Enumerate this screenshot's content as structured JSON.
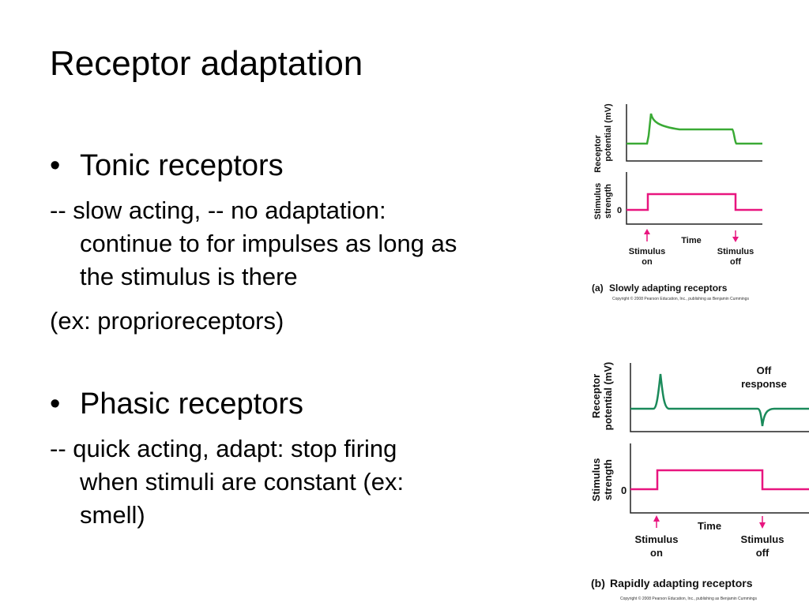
{
  "title": "Receptor adaptation",
  "tonic": {
    "bullet": "•",
    "heading": "Tonic receptors",
    "line1": " -- slow acting, -- no adaptation:",
    "line2": "continue to for impulses as long as",
    "line3": "the stimulus is there",
    "example": "(ex: proprioreceptors)"
  },
  "phasic": {
    "bullet": "•",
    "heading": "Phasic receptors",
    "line1": " -- quick acting, adapt: stop firing",
    "line2": "when stimuli are constant (ex:",
    "line3": "smell)"
  },
  "fig_a": {
    "ylabel_top_1": "Receptor",
    "ylabel_top_2": "potential (mV)",
    "ylabel_bottom_1": "Stimulus",
    "ylabel_bottom_2": "strength",
    "zero": "0",
    "time": "Time",
    "on_1": "Stimulus",
    "on_2": "on",
    "off_1": "Stimulus",
    "off_2": "off",
    "caption_tag": "(a)",
    "caption": "Slowly adapting receptors",
    "copyright": "Copyright © 2008 Pearson Education, Inc., publishing as Benjamin Cummings",
    "response_color": "#3aaa35",
    "stimulus_color": "#e8157f"
  },
  "fig_b": {
    "ylabel_top_1": "Receptor",
    "ylabel_top_2": "potential (mV)",
    "ylabel_bottom_1": "Stimulus",
    "ylabel_bottom_2": "strength",
    "zero": "0",
    "time": "Time",
    "on_1": "Stimulus",
    "on_2": "on",
    "off_1": "Stimulus",
    "off_2": "off",
    "off_response_1": "Off",
    "off_response_2": "response",
    "caption_tag": "(b)",
    "caption": "Rapidly adapting receptors",
    "copyright": "Copyright © 2008 Pearson Education, Inc., publishing as Benjamin Cummings",
    "response_color": "#1a8a5a",
    "stimulus_color": "#e8157f"
  }
}
